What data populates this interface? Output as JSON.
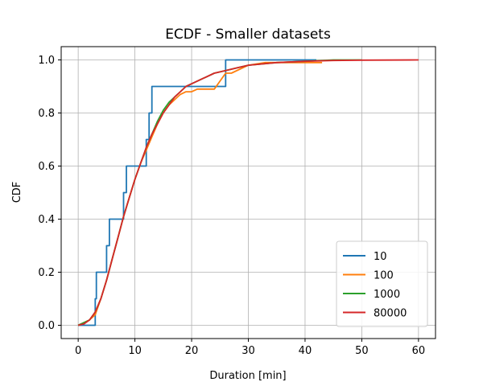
{
  "chart_data": {
    "type": "line",
    "title": "ECDF - Smaller datasets",
    "xlabel": "Duration [min]",
    "ylabel": "CDF",
    "xlim": [
      -3,
      63
    ],
    "ylim": [
      -0.05,
      1.05
    ],
    "xticks": [
      0,
      10,
      20,
      30,
      40,
      50,
      60
    ],
    "yticks": [
      0.0,
      0.2,
      0.4,
      0.6,
      0.8,
      1.0
    ],
    "xtick_labels": [
      "0",
      "10",
      "20",
      "30",
      "40",
      "50",
      "60"
    ],
    "ytick_labels": [
      "0.0",
      "0.2",
      "0.4",
      "0.6",
      "0.8",
      "1.0"
    ],
    "grid": true,
    "legend_position": "lower-right",
    "series": [
      {
        "name": "10",
        "color": "#1f77b4",
        "step": true,
        "x": [
          0,
          3,
          3,
          3.2,
          3.2,
          5,
          5,
          5.5,
          5.5,
          8,
          8,
          8.5,
          8.5,
          12,
          12,
          12.5,
          12.5,
          13,
          13,
          26,
          26,
          42
        ],
        "y": [
          0,
          0,
          0.1,
          0.1,
          0.2,
          0.2,
          0.3,
          0.3,
          0.4,
          0.4,
          0.5,
          0.5,
          0.6,
          0.6,
          0.7,
          0.7,
          0.8,
          0.8,
          0.9,
          0.9,
          1.0,
          1.0
        ]
      },
      {
        "name": "100",
        "color": "#ff7f0e",
        "step": false,
        "x": [
          0,
          1,
          2,
          3,
          4,
          5,
          6,
          7,
          8,
          9,
          10,
          11,
          12,
          13,
          14,
          15,
          16,
          17,
          18,
          19,
          20,
          21,
          22,
          23,
          24,
          25,
          26,
          27,
          30,
          33,
          38,
          43
        ],
        "y": [
          0,
          0.01,
          0.02,
          0.04,
          0.1,
          0.17,
          0.25,
          0.33,
          0.41,
          0.48,
          0.55,
          0.61,
          0.66,
          0.71,
          0.76,
          0.8,
          0.83,
          0.85,
          0.87,
          0.88,
          0.88,
          0.89,
          0.89,
          0.89,
          0.89,
          0.92,
          0.95,
          0.95,
          0.98,
          0.99,
          0.99,
          0.99
        ]
      },
      {
        "name": "1000",
        "color": "#2ca02c",
        "step": false,
        "x": [
          0,
          1,
          2,
          3,
          4,
          5,
          6,
          7,
          8,
          9,
          10,
          11,
          12,
          13,
          14,
          15,
          16,
          17,
          18,
          19,
          20,
          22,
          24,
          26,
          28,
          30,
          35,
          40,
          45,
          50
        ],
        "y": [
          0,
          0.01,
          0.02,
          0.05,
          0.1,
          0.17,
          0.25,
          0.33,
          0.41,
          0.48,
          0.55,
          0.61,
          0.67,
          0.72,
          0.77,
          0.81,
          0.84,
          0.86,
          0.88,
          0.9,
          0.91,
          0.93,
          0.95,
          0.96,
          0.97,
          0.98,
          0.99,
          0.995,
          1.0,
          1.0
        ]
      },
      {
        "name": "80000",
        "color": "#d62728",
        "step": false,
        "x": [
          0,
          1,
          2,
          3,
          4,
          5,
          6,
          7,
          8,
          9,
          10,
          11,
          12,
          13,
          14,
          15,
          16,
          17,
          18,
          19,
          20,
          22,
          24,
          26,
          28,
          30,
          35,
          40,
          45,
          50,
          60
        ],
        "y": [
          0,
          0.005,
          0.02,
          0.05,
          0.1,
          0.17,
          0.25,
          0.33,
          0.41,
          0.48,
          0.55,
          0.61,
          0.67,
          0.72,
          0.76,
          0.8,
          0.83,
          0.86,
          0.88,
          0.9,
          0.91,
          0.93,
          0.95,
          0.96,
          0.97,
          0.98,
          0.99,
          0.995,
          0.998,
          0.999,
          1.0
        ]
      }
    ]
  }
}
